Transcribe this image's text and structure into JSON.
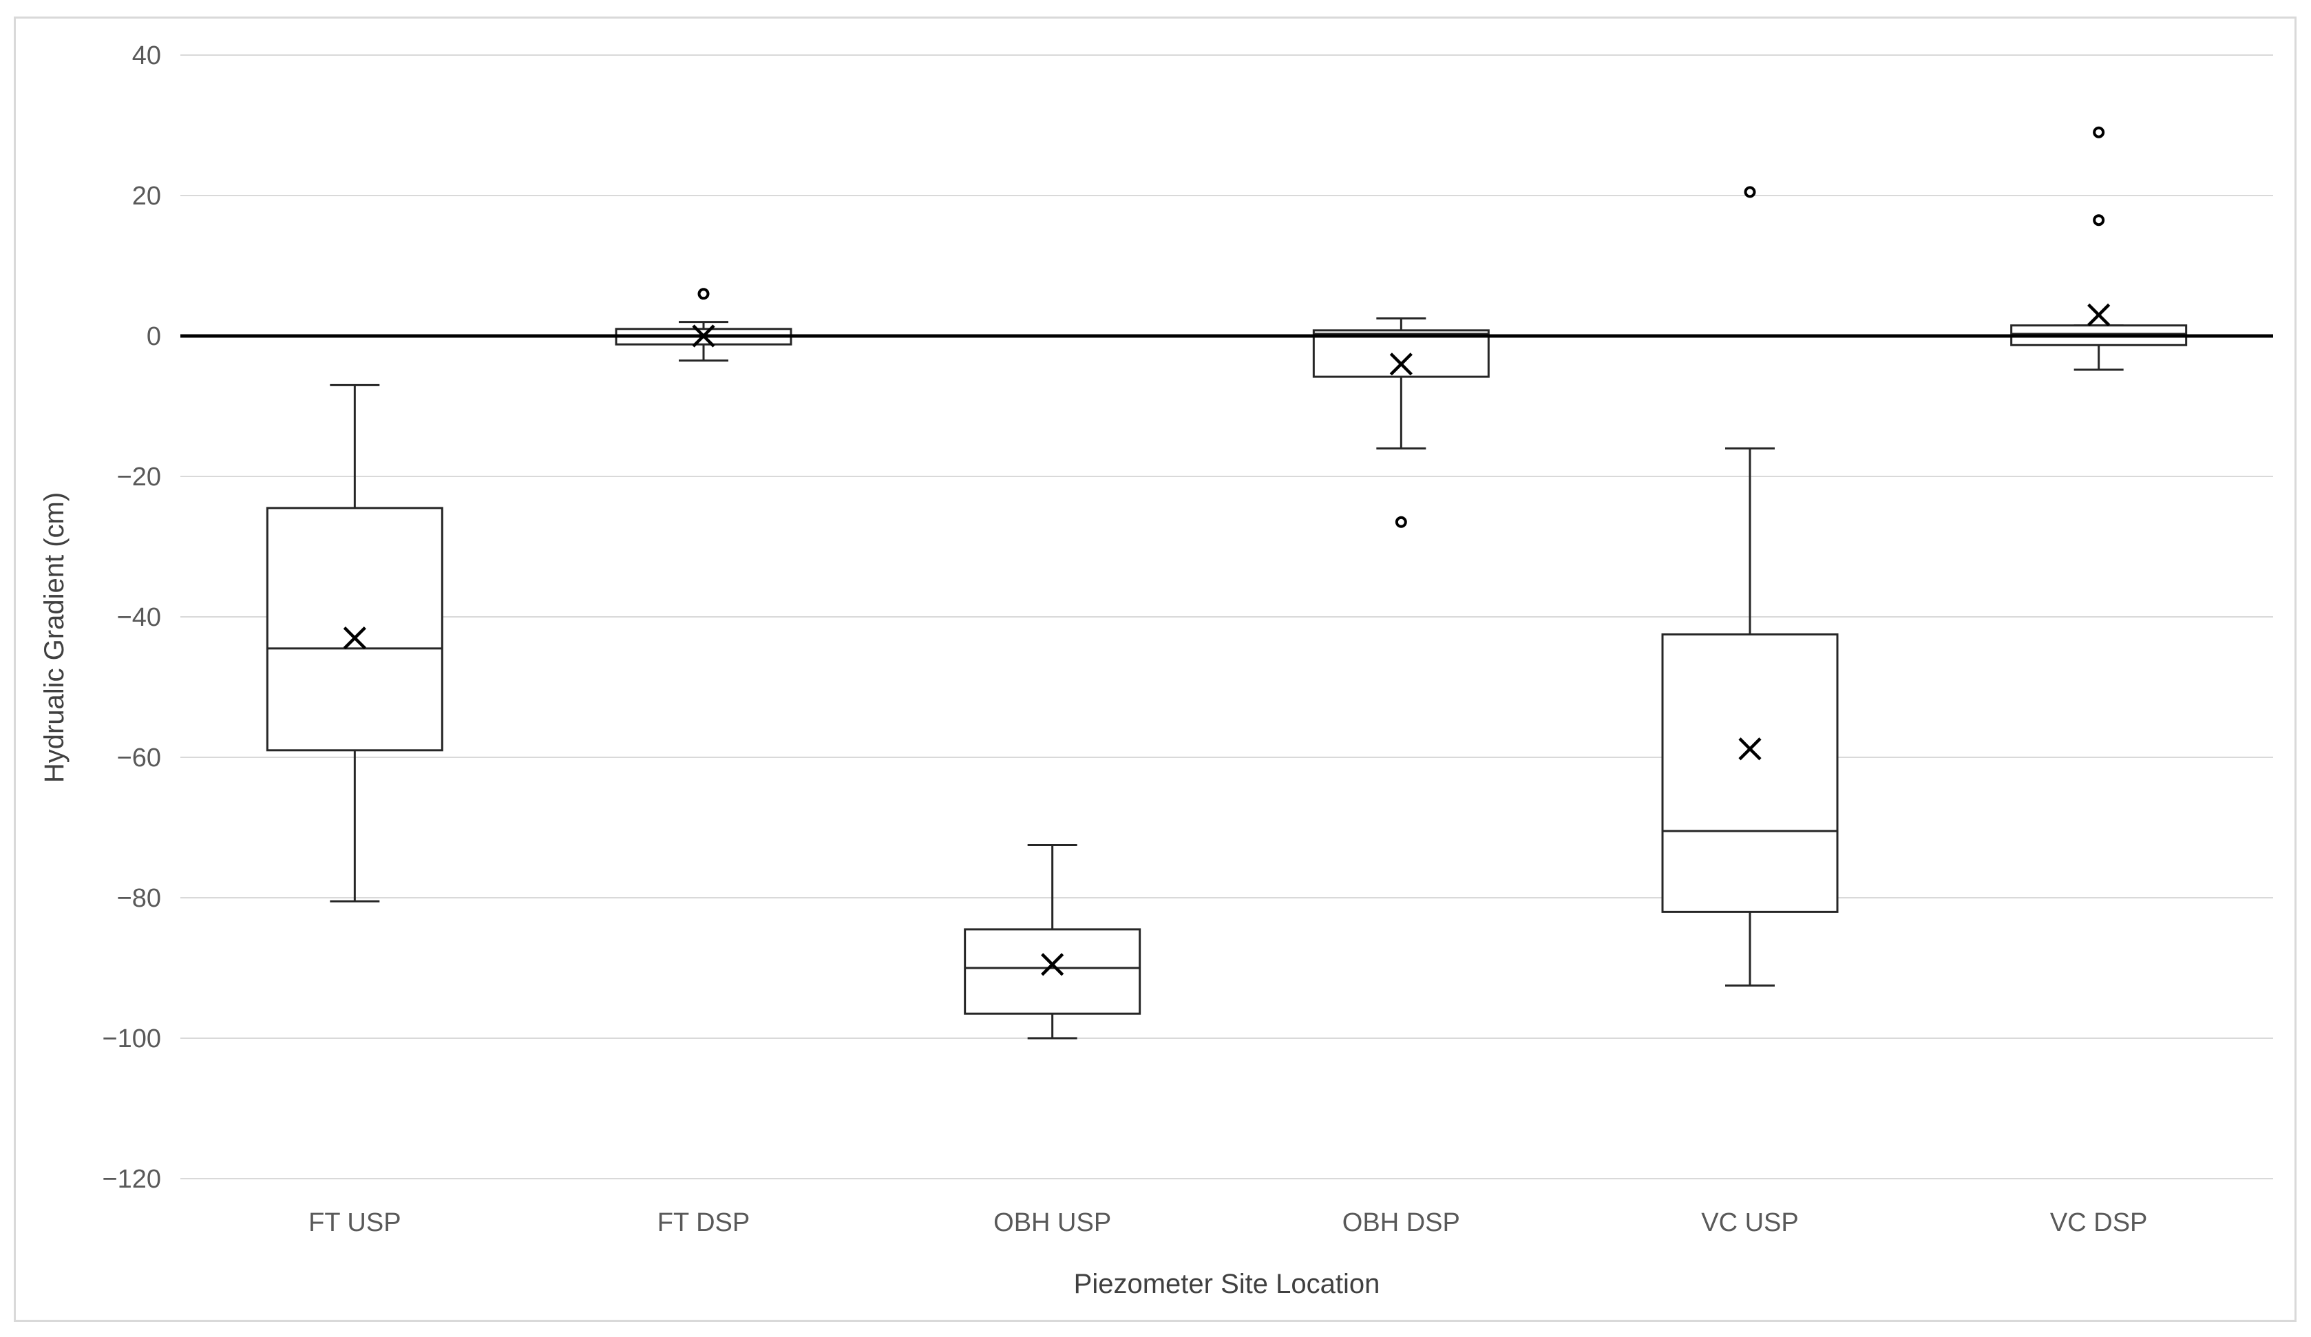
{
  "chart_data": {
    "type": "box",
    "xlabel": "Piezometer Site Location",
    "ylabel": "Hydrualic Gradient (cm)",
    "ylim": [
      -120,
      40
    ],
    "yticks": [
      40,
      20,
      0,
      -20,
      -40,
      -60,
      -80,
      -100,
      -120
    ],
    "ytick_labels": [
      "40",
      "20",
      "0",
      "−20",
      "−40",
      "−60",
      "−80",
      "−100",
      "−120"
    ],
    "grid": true,
    "reference_line_y": 0,
    "categories": [
      "FT USP",
      "FT DSP",
      "OBH USP",
      "OBH DSP",
      "VC USP",
      "VC DSP"
    ],
    "boxes": [
      {
        "name": "FT USP",
        "min": -80.5,
        "q1": -59,
        "median": -44.5,
        "q3": -24.5,
        "max": -7,
        "mean": -43,
        "outliers": []
      },
      {
        "name": "FT DSP",
        "min": -3.5,
        "q1": -1.2,
        "median": 0,
        "q3": 1,
        "max": 2,
        "mean": 0,
        "outliers": [
          6
        ]
      },
      {
        "name": "OBH USP",
        "min": -100,
        "q1": -96.5,
        "median": -90,
        "q3": -84.5,
        "max": -72.5,
        "mean": -89.5,
        "outliers": []
      },
      {
        "name": "OBH DSP",
        "min": -16,
        "q1": -5.8,
        "median": 0.3,
        "q3": 0.8,
        "max": 2.5,
        "mean": -4,
        "outliers": [
          -26.5
        ]
      },
      {
        "name": "VC USP",
        "min": -92.5,
        "q1": -82,
        "median": -70.5,
        "q3": -42.5,
        "max": -16,
        "mean": -58.8,
        "outliers": [
          20.5
        ]
      },
      {
        "name": "VC DSP",
        "min": -4.8,
        "q1": -1.3,
        "median": 0.3,
        "q3": 1.5,
        "max": 1.5,
        "mean": 3,
        "outliers": [
          29,
          16.5
        ]
      }
    ]
  }
}
